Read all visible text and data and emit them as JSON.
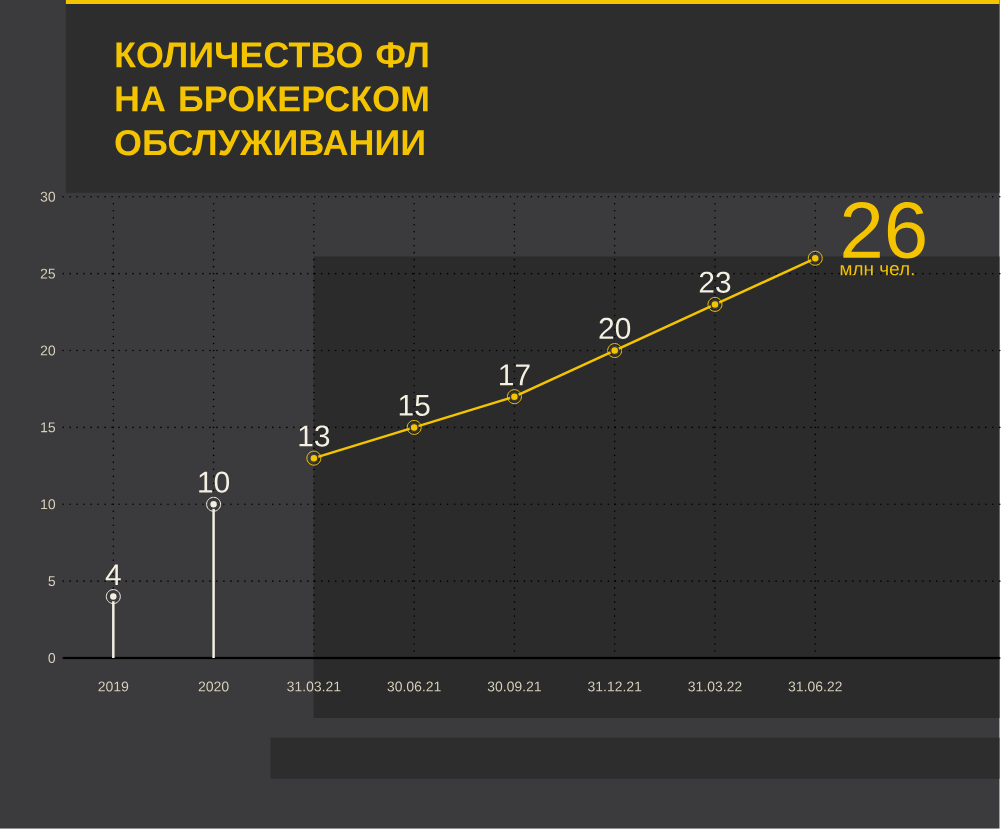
{
  "chart_data": {
    "type": "line",
    "title": "КОЛИЧЕСТВО ФЛ НА БРОКЕРСКОМ ОБСЛУЖИВАНИИ",
    "categories": [
      "2019",
      "2020",
      "31.03.21",
      "30.06.21",
      "30.09.21",
      "31.12.21",
      "31.03.22",
      "31.06.22"
    ],
    "series": [
      {
        "type": "lollipop",
        "color": "#f2eee0",
        "values": [
          4,
          10,
          null,
          null,
          null,
          null,
          null,
          null
        ]
      },
      {
        "color": "#f5c400",
        "values": [
          null,
          null,
          13,
          15,
          17,
          20,
          23,
          26
        ]
      }
    ],
    "ylim": [
      0,
      30
    ],
    "yticks": [
      0,
      5,
      10,
      15,
      20,
      25,
      30
    ],
    "grid": true,
    "marker": "circle",
    "data_labels": true,
    "bands": [
      {
        "axis": "x",
        "from": "31.03.21",
        "to": "31.06.22",
        "color": "#2b2b2c"
      }
    ],
    "annotations": [
      "млн чел."
    ]
  }
}
